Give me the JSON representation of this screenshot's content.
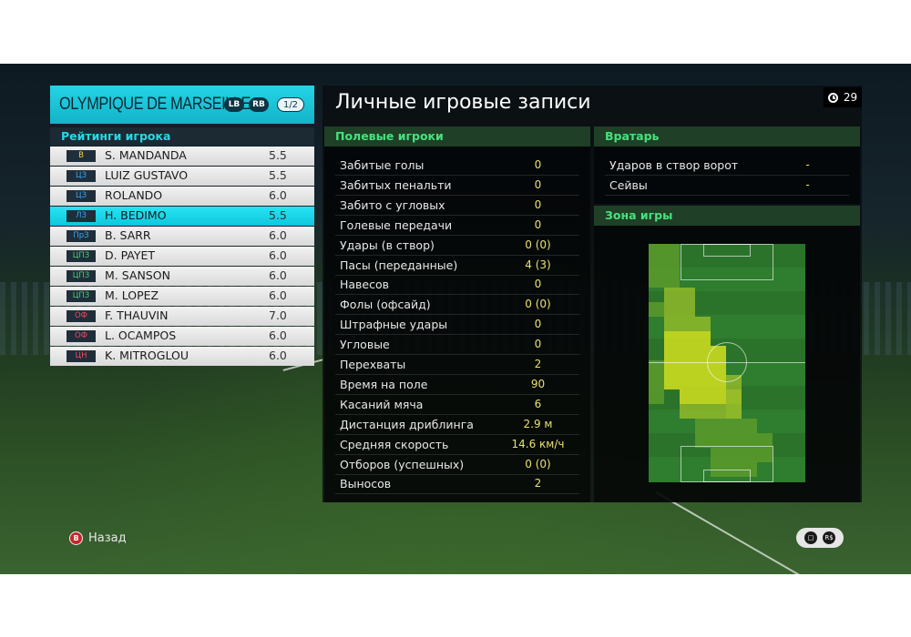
{
  "team": {
    "name": "OLYMPIQUE DE MARSEILLE",
    "lb_label": "LB",
    "rb_label": "RB",
    "page_indicator": "1/2"
  },
  "ratings_title": "Рейтинги игрока",
  "players": [
    {
      "pos": "В",
      "pos_color": "#f2d43a",
      "name": "S. MANDANDA",
      "rating": "5.5",
      "selected": false
    },
    {
      "pos": "ЦЗ",
      "pos_color": "#3aa8f2",
      "name": "LUIZ GUSTAVO",
      "rating": "5.5",
      "selected": false
    },
    {
      "pos": "ЦЗ",
      "pos_color": "#3aa8f2",
      "name": "ROLANDO",
      "rating": "6.0",
      "selected": false
    },
    {
      "pos": "ЛЗ",
      "pos_color": "#3aa8f2",
      "name": "H. BEDIMO",
      "rating": "5.5",
      "selected": true
    },
    {
      "pos": "ПрЗ",
      "pos_color": "#3aa8f2",
      "name": "B. SARR",
      "rating": "6.0",
      "selected": false
    },
    {
      "pos": "ЦПЗ",
      "pos_color": "#46d46a",
      "name": "D. PAYET",
      "rating": "6.0",
      "selected": false
    },
    {
      "pos": "ЦПЗ",
      "pos_color": "#46d46a",
      "name": "M. SANSON",
      "rating": "6.0",
      "selected": false
    },
    {
      "pos": "ЦПЗ",
      "pos_color": "#46d46a",
      "name": "M. LOPEZ",
      "rating": "6.0",
      "selected": false
    },
    {
      "pos": "ОФ",
      "pos_color": "#f24a5a",
      "name": "F. THAUVIN",
      "rating": "7.0",
      "selected": false
    },
    {
      "pos": "ОФ",
      "pos_color": "#f24a5a",
      "name": "L. OCAMPOS",
      "rating": "6.0",
      "selected": false
    },
    {
      "pos": "ЦН",
      "pos_color": "#f24a5a",
      "name": "K. MITROGLOU",
      "rating": "6.0",
      "selected": false
    }
  ],
  "records_title": "Личные игровые записи",
  "timer_value": "29",
  "field_players_header": "Полевые игроки",
  "field_stats": [
    {
      "label": "Забитые голы",
      "value": "0"
    },
    {
      "label": "Забитых пенальти",
      "value": "0"
    },
    {
      "label": "Забито с угловых",
      "value": "0"
    },
    {
      "label": "Голевые передачи",
      "value": "0"
    },
    {
      "label": "Удары (в створ)",
      "value": "0 (0)"
    },
    {
      "label": "Пасы (переданные)",
      "value": "4 (3)"
    },
    {
      "label": "Навесов",
      "value": "0"
    },
    {
      "label": "Фолы (офсайд)",
      "value": "0 (0)"
    },
    {
      "label": "Штрафные удары",
      "value": "0"
    },
    {
      "label": "Угловые",
      "value": "0"
    },
    {
      "label": "Перехваты",
      "value": "2"
    },
    {
      "label": "Время на поле",
      "value": "90"
    },
    {
      "label": "Касаний мяча",
      "value": "6"
    },
    {
      "label": "Дистанция дриблинга",
      "value": "2.9 м"
    },
    {
      "label": "Средняя скорость",
      "value": "14.6 км/ч"
    },
    {
      "label": "Отборов (успешных)",
      "value": "0 (0)"
    },
    {
      "label": "Выносов",
      "value": "2"
    }
  ],
  "goalkeeper_header": "Вратарь",
  "gk_stats": [
    {
      "label": "Ударов в створ ворот",
      "value": "-"
    },
    {
      "label": "Сейвы",
      "value": "-"
    }
  ],
  "zone_header": "Зона игры",
  "heatmap_colors": {
    "pitch": "#2f7d2e",
    "low": "#5a9a2c",
    "mid": "#8fb82a",
    "high": "#d4e01e"
  },
  "back_label": "Назад",
  "back_icon_glyph": "B",
  "corner_icons": [
    "chat-icon",
    "rs-icon"
  ],
  "corner_rs_glyph": "R$"
}
